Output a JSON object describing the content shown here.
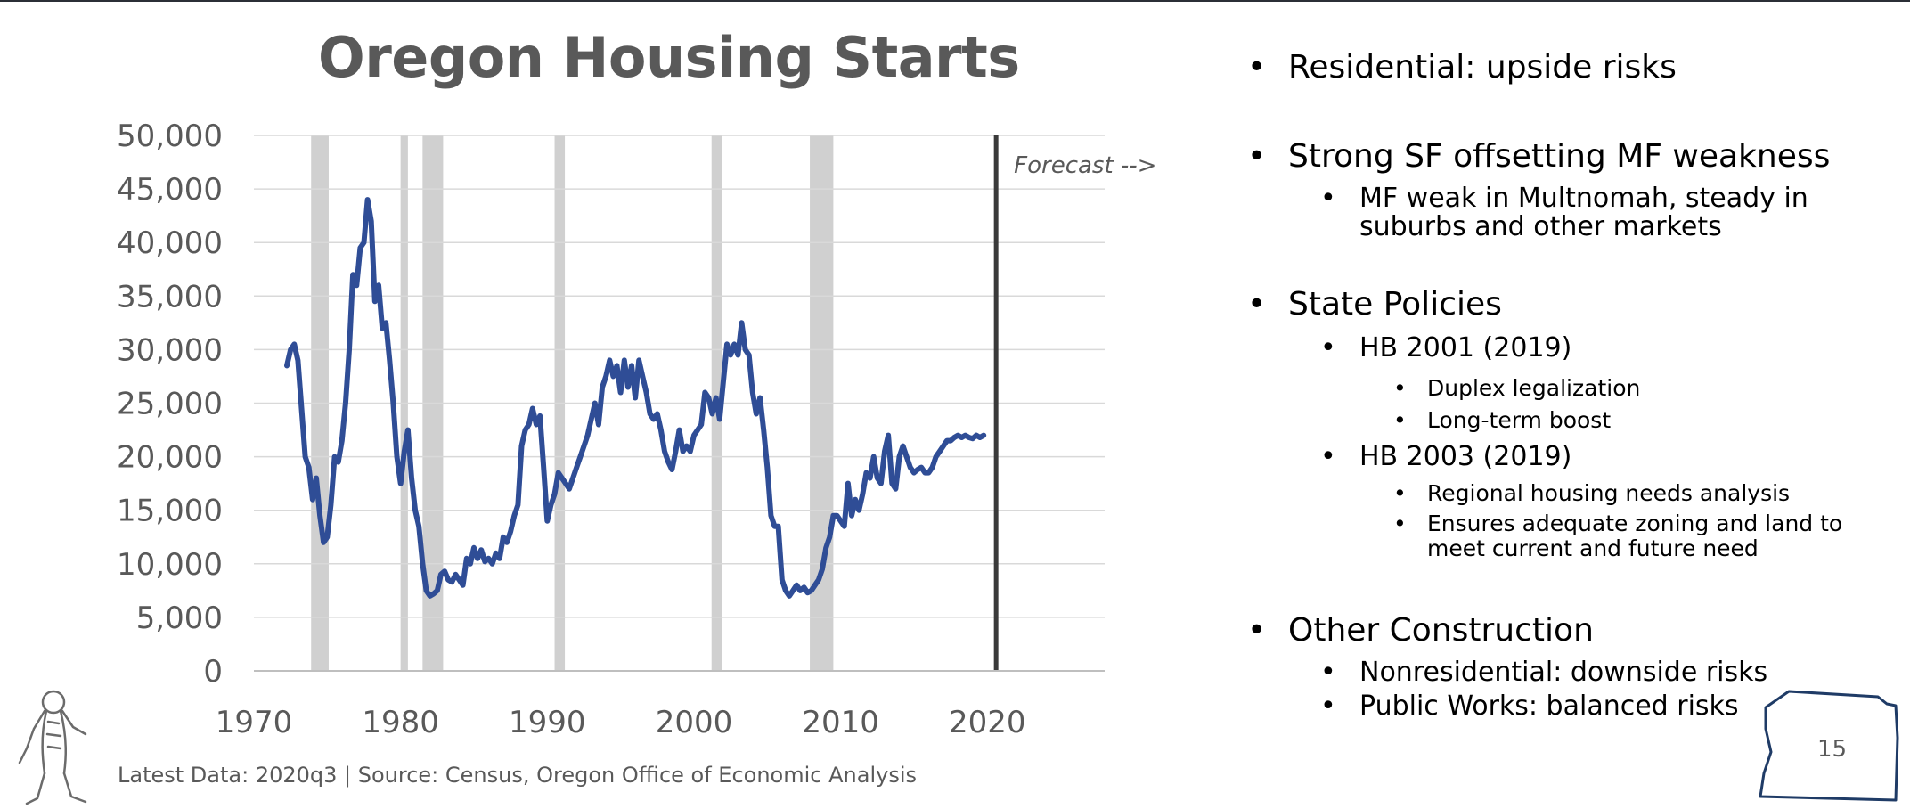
{
  "chart_data": {
    "type": "line",
    "title": "Oregon Housing Starts",
    "xlim": [
      1970,
      2028
    ],
    "ylim": [
      0,
      50000
    ],
    "x_ticks": [
      1970,
      1980,
      1990,
      2000,
      2010,
      2020
    ],
    "y_ticks": [
      0,
      5000,
      10000,
      15000,
      20000,
      25000,
      30000,
      35000,
      40000,
      45000,
      50000
    ],
    "y_tick_labels": [
      "0",
      "5,000",
      "10,000",
      "15,000",
      "20,000",
      "25,000",
      "30,000",
      "35,000",
      "40,000",
      "45,000",
      "50,000"
    ],
    "grid": "horizontal",
    "series_color": "#2f4d96",
    "recession_color": "#d0d0d0",
    "recessions": [
      [
        1973.9,
        1975.1
      ],
      [
        1980.0,
        1980.5
      ],
      [
        1981.5,
        1982.9
      ],
      [
        1990.5,
        1991.2
      ],
      [
        2001.2,
        2001.9
      ],
      [
        2007.9,
        2009.5
      ]
    ],
    "forecast_start": 2020.6,
    "forecast_label": "Forecast -->",
    "series": [
      {
        "points": [
          [
            1972.25,
            28500
          ],
          [
            1972.5,
            30000
          ],
          [
            1972.75,
            30500
          ],
          [
            1973.0,
            29000
          ],
          [
            1973.25,
            24500
          ],
          [
            1973.5,
            20000
          ],
          [
            1973.75,
            19000
          ],
          [
            1974.0,
            16000
          ],
          [
            1974.25,
            18000
          ],
          [
            1974.5,
            14500
          ],
          [
            1974.75,
            12000
          ],
          [
            1975.0,
            12500
          ],
          [
            1975.25,
            15500
          ],
          [
            1975.5,
            20000
          ],
          [
            1975.75,
            19500
          ],
          [
            1976.0,
            21500
          ],
          [
            1976.25,
            25000
          ],
          [
            1976.5,
            30000
          ],
          [
            1976.75,
            37000
          ],
          [
            1977.0,
            36000
          ],
          [
            1977.25,
            39500
          ],
          [
            1977.5,
            40000
          ],
          [
            1977.75,
            44000
          ],
          [
            1978.0,
            42000
          ],
          [
            1978.25,
            34500
          ],
          [
            1978.5,
            36000
          ],
          [
            1978.75,
            32000
          ],
          [
            1979.0,
            32500
          ],
          [
            1979.25,
            29000
          ],
          [
            1979.5,
            25000
          ],
          [
            1979.75,
            20000
          ],
          [
            1980.0,
            17500
          ],
          [
            1980.25,
            20500
          ],
          [
            1980.5,
            22500
          ],
          [
            1980.75,
            18000
          ],
          [
            1981.0,
            15000
          ],
          [
            1981.25,
            13500
          ],
          [
            1981.5,
            10000
          ],
          [
            1981.75,
            7500
          ],
          [
            1982.0,
            7000
          ],
          [
            1982.25,
            7200
          ],
          [
            1982.5,
            7500
          ],
          [
            1982.75,
            9000
          ],
          [
            1983.0,
            9300
          ],
          [
            1983.25,
            8500
          ],
          [
            1983.5,
            8300
          ],
          [
            1983.75,
            9000
          ],
          [
            1984.0,
            8500
          ],
          [
            1984.25,
            8000
          ],
          [
            1984.5,
            10500
          ],
          [
            1984.75,
            10000
          ],
          [
            1985.0,
            11500
          ],
          [
            1985.25,
            10500
          ],
          [
            1985.5,
            11300
          ],
          [
            1985.75,
            10200
          ],
          [
            1986.0,
            10500
          ],
          [
            1986.25,
            10000
          ],
          [
            1986.5,
            11000
          ],
          [
            1986.75,
            10500
          ],
          [
            1987.0,
            12500
          ],
          [
            1987.25,
            12000
          ],
          [
            1987.5,
            13000
          ],
          [
            1987.75,
            14500
          ],
          [
            1988.0,
            15500
          ],
          [
            1988.25,
            21000
          ],
          [
            1988.5,
            22500
          ],
          [
            1988.75,
            23000
          ],
          [
            1989.0,
            24500
          ],
          [
            1989.25,
            23000
          ],
          [
            1989.5,
            23800
          ],
          [
            1989.75,
            19000
          ],
          [
            1990.0,
            14000
          ],
          [
            1990.25,
            15500
          ],
          [
            1990.5,
            16500
          ],
          [
            1990.75,
            18500
          ],
          [
            1991.0,
            18000
          ],
          [
            1991.25,
            17500
          ],
          [
            1991.5,
            17000
          ],
          [
            1991.75,
            18000
          ],
          [
            1992.0,
            19000
          ],
          [
            1992.25,
            20000
          ],
          [
            1992.5,
            21000
          ],
          [
            1992.75,
            22000
          ],
          [
            1993.0,
            23500
          ],
          [
            1993.25,
            25000
          ],
          [
            1993.5,
            23000
          ],
          [
            1993.75,
            26500
          ],
          [
            1994.0,
            27500
          ],
          [
            1994.25,
            29000
          ],
          [
            1994.5,
            27500
          ],
          [
            1994.75,
            28500
          ],
          [
            1995.0,
            26000
          ],
          [
            1995.25,
            29000
          ],
          [
            1995.5,
            26500
          ],
          [
            1995.75,
            28500
          ],
          [
            1996.0,
            25500
          ],
          [
            1996.25,
            29000
          ],
          [
            1996.5,
            27500
          ],
          [
            1996.75,
            26000
          ],
          [
            1997.0,
            24000
          ],
          [
            1997.25,
            23500
          ],
          [
            1997.5,
            24000
          ],
          [
            1997.75,
            22500
          ],
          [
            1998.0,
            20500
          ],
          [
            1998.25,
            19500
          ],
          [
            1998.5,
            18800
          ],
          [
            1998.75,
            20500
          ],
          [
            1999.0,
            22500
          ],
          [
            1999.25,
            20500
          ],
          [
            1999.5,
            21000
          ],
          [
            1999.75,
            20500
          ],
          [
            2000.0,
            22000
          ],
          [
            2000.25,
            22500
          ],
          [
            2000.5,
            23000
          ],
          [
            2000.75,
            26000
          ],
          [
            2001.0,
            25500
          ],
          [
            2001.25,
            24000
          ],
          [
            2001.5,
            25500
          ],
          [
            2001.75,
            23500
          ],
          [
            2002.0,
            27000
          ],
          [
            2002.25,
            30500
          ],
          [
            2002.5,
            29500
          ],
          [
            2002.75,
            30500
          ],
          [
            2003.0,
            29500
          ],
          [
            2003.25,
            32500
          ],
          [
            2003.5,
            30000
          ],
          [
            2003.75,
            29500
          ],
          [
            2004.0,
            26000
          ],
          [
            2004.25,
            24000
          ],
          [
            2004.5,
            25500
          ],
          [
            2004.75,
            22500
          ],
          [
            2005.0,
            19000
          ],
          [
            2005.25,
            14500
          ],
          [
            2005.5,
            13500
          ],
          [
            2005.75,
            13500
          ],
          [
            2006.0,
            8500
          ],
          [
            2006.25,
            7500
          ],
          [
            2006.5,
            7000
          ],
          [
            2006.75,
            7500
          ],
          [
            2007.0,
            8000
          ],
          [
            2007.25,
            7500
          ],
          [
            2007.5,
            7800
          ],
          [
            2007.75,
            7300
          ],
          [
            2008.0,
            7500
          ],
          [
            2008.25,
            8000
          ],
          [
            2008.5,
            8500
          ],
          [
            2008.75,
            9500
          ],
          [
            2009.0,
            11500
          ],
          [
            2009.25,
            12500
          ],
          [
            2009.5,
            14500
          ],
          [
            2009.75,
            14500
          ],
          [
            2010.0,
            14000
          ],
          [
            2010.25,
            13500
          ],
          [
            2010.5,
            17500
          ],
          [
            2010.75,
            14500
          ],
          [
            2011.0,
            16000
          ],
          [
            2011.25,
            15000
          ],
          [
            2011.5,
            16500
          ],
          [
            2011.75,
            18500
          ],
          [
            2012.0,
            18000
          ],
          [
            2012.25,
            20000
          ],
          [
            2012.5,
            18000
          ],
          [
            2012.75,
            17500
          ],
          [
            2013.0,
            20500
          ],
          [
            2013.25,
            22000
          ],
          [
            2013.5,
            17500
          ],
          [
            2013.75,
            17000
          ],
          [
            2014.0,
            20000
          ],
          [
            2014.25,
            21000
          ],
          [
            2014.5,
            20000
          ],
          [
            2014.75,
            19000
          ],
          [
            2015.0,
            18500
          ],
          [
            2015.25,
            18800
          ],
          [
            2015.5,
            19000
          ],
          [
            2015.75,
            18500
          ],
          [
            2016.0,
            18500
          ],
          [
            2016.25,
            19000
          ],
          [
            2016.5,
            20000
          ],
          [
            2016.75,
            20500
          ],
          [
            2017.0,
            21000
          ],
          [
            2017.25,
            21500
          ],
          [
            2017.5,
            21500
          ],
          [
            2017.75,
            21800
          ],
          [
            2018.0,
            22000
          ],
          [
            2018.25,
            21800
          ],
          [
            2018.5,
            22000
          ],
          [
            2018.75,
            21800
          ],
          [
            2019.0,
            21700
          ],
          [
            2019.25,
            22000
          ],
          [
            2019.5,
            21800
          ],
          [
            2019.75,
            22000
          ]
        ]
      }
    ]
  },
  "footnote": "Latest Data: 2020q3  |  Source: Census, Oregon Office of Economic Analysis",
  "bullets": [
    {
      "level": 1,
      "text": "Residential: upside risks"
    },
    {
      "level": 1,
      "text": "Strong SF offsetting MF weakness"
    },
    {
      "level": 2,
      "text": "MF weak in Multnomah, steady in"
    },
    {
      "level": 2,
      "text": "suburbs and other markets"
    },
    {
      "level": 1,
      "text": "State Policies"
    },
    {
      "level": 2,
      "text": "HB 2001 (2019)"
    },
    {
      "level": 3,
      "text": "Duplex legalization"
    },
    {
      "level": 3,
      "text": "Long-term boost"
    },
    {
      "level": 2,
      "text": "HB 2003 (2019)"
    },
    {
      "level": 3,
      "text": "Regional housing needs analysis"
    },
    {
      "level": 3,
      "text": "Ensures adequate zoning and land to"
    },
    {
      "level": 3,
      "text": "meet current and future need"
    },
    {
      "level": 1,
      "text": "Other Construction"
    },
    {
      "level": 2,
      "text": "Nonresidential: downside risks"
    },
    {
      "level": 2,
      "text": "Public Works: balanced risks"
    }
  ],
  "slide_number": "15",
  "icons": {
    "mascot": "bigfoot-icon",
    "state_outline": "oregon-outline-icon"
  }
}
